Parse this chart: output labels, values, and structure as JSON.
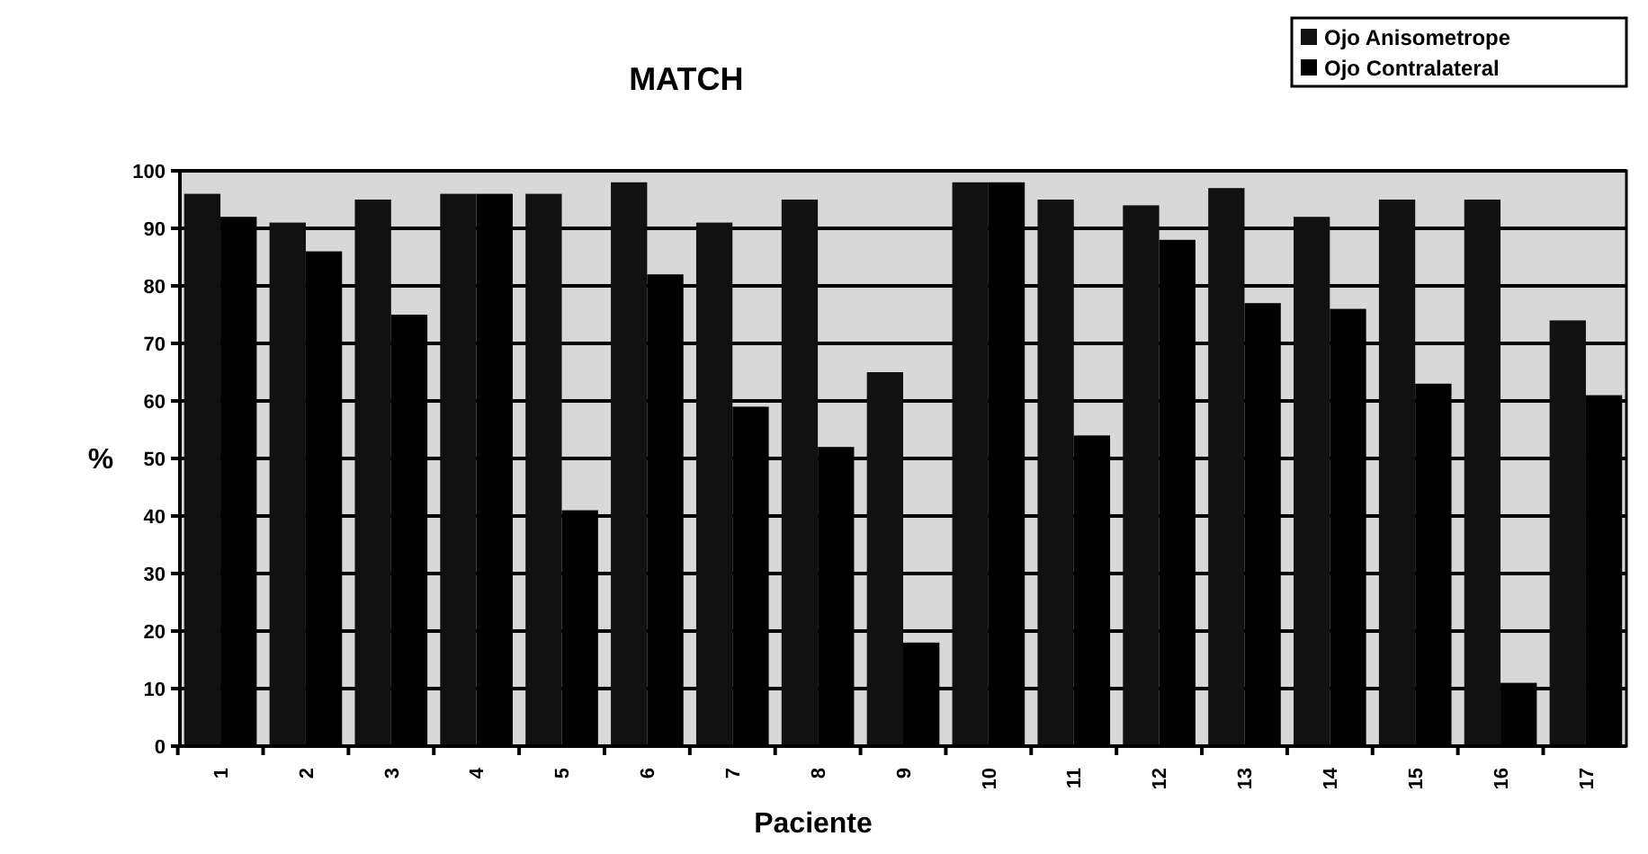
{
  "chart_data": {
    "type": "bar",
    "title": "MATCH",
    "xlabel": "Paciente",
    "ylabel": "%",
    "categories": [
      "1",
      "2",
      "3",
      "4",
      "5",
      "6",
      "7",
      "8",
      "9",
      "10",
      "11",
      "12",
      "13",
      "14",
      "15",
      "16",
      "17"
    ],
    "series": [
      {
        "name": "Ojo Anisometrope",
        "color": "#111111",
        "values": [
          96,
          91,
          95,
          96,
          96,
          98,
          91,
          95,
          65,
          98,
          95,
          94,
          97,
          92,
          95,
          95,
          74
        ]
      },
      {
        "name": "Ojo Contralateral",
        "color": "#000000",
        "values": [
          92,
          86,
          75,
          96,
          41,
          82,
          59,
          52,
          18,
          98,
          54,
          88,
          77,
          76,
          63,
          11,
          61
        ]
      }
    ],
    "ylim": [
      0,
      100
    ],
    "yticks": [
      0,
      10,
      20,
      30,
      40,
      50,
      60,
      70,
      80,
      90,
      100
    ],
    "grid": "y",
    "legend": "top right"
  }
}
